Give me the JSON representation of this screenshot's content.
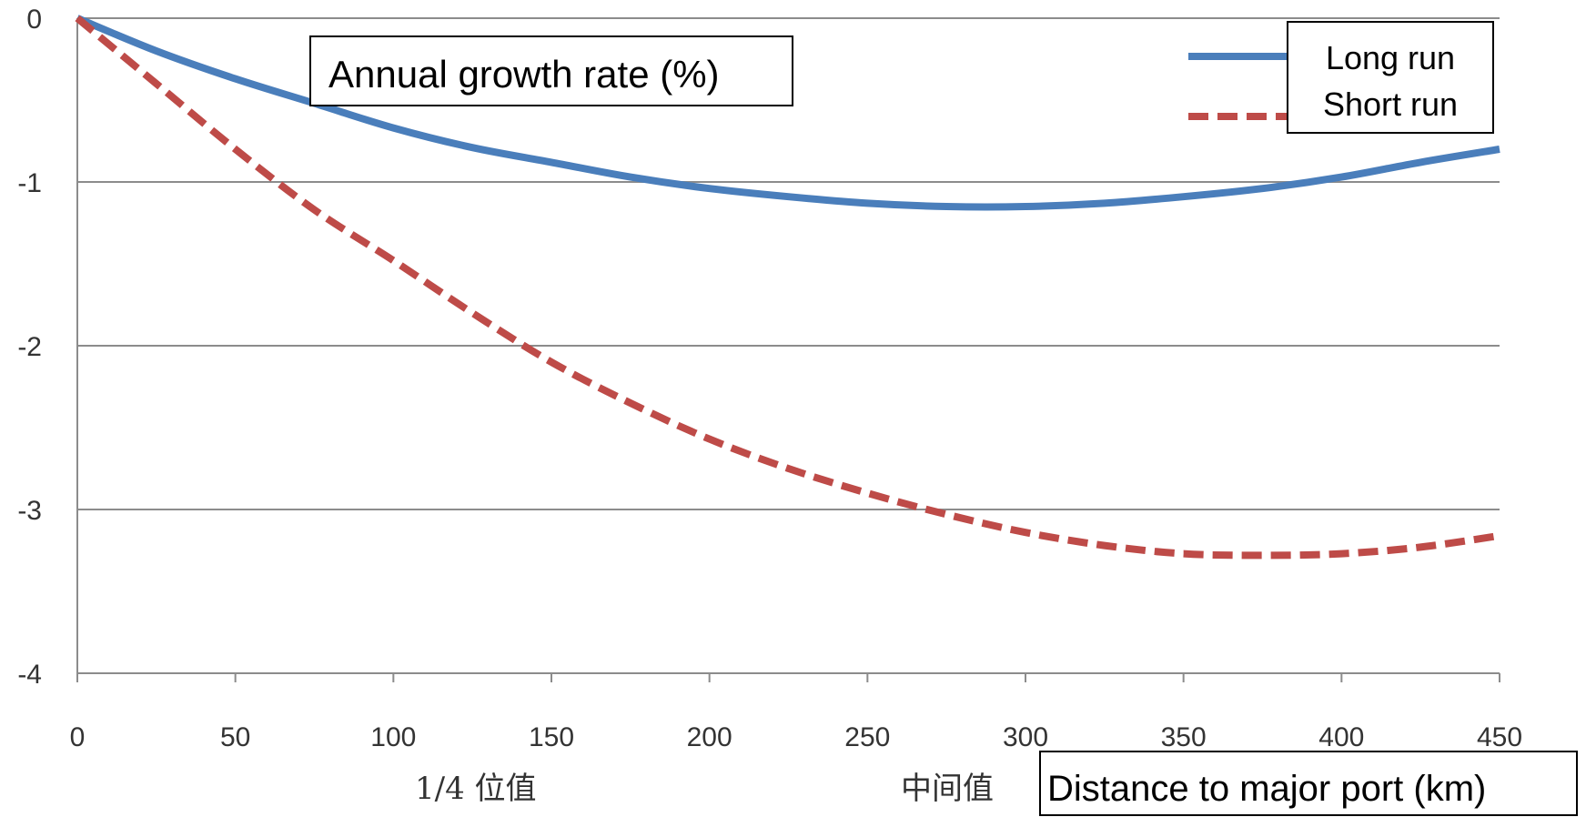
{
  "chart_data": {
    "type": "line",
    "title": "",
    "ylabel": "Annual growth rate (%)",
    "xlabel": "Distance to major port (km)",
    "xlim": [
      0,
      450
    ],
    "ylim": [
      -4,
      0
    ],
    "x_ticks": [
      "0",
      "50",
      "100",
      "150",
      "200",
      "250",
      "300",
      "350",
      "400",
      "450"
    ],
    "y_ticks": [
      "0",
      "-1",
      "-2",
      "-3",
      "-4"
    ],
    "grid": "horizontal",
    "legend_position": "top-right",
    "annotations": {
      "quartile": "1/4 位值",
      "median": "中间值"
    },
    "series": [
      {
        "name": "Long run",
        "style": "solid",
        "color": "#4a7ebb",
        "x": [
          0,
          25,
          50,
          75,
          100,
          125,
          150,
          175,
          200,
          225,
          250,
          275,
          300,
          325,
          350,
          375,
          400,
          425,
          450
        ],
        "values": [
          0,
          -0.2,
          -0.37,
          -0.52,
          -0.67,
          -0.79,
          -0.88,
          -0.97,
          -1.04,
          -1.09,
          -1.13,
          -1.15,
          -1.15,
          -1.13,
          -1.09,
          -1.04,
          -0.97,
          -0.88,
          -0.8
        ]
      },
      {
        "name": "Short run",
        "style": "dashed",
        "color": "#be4b48",
        "x": [
          0,
          25,
          50,
          75,
          100,
          125,
          150,
          175,
          200,
          225,
          250,
          275,
          300,
          325,
          350,
          375,
          400,
          425,
          450
        ],
        "values": [
          0,
          -0.4,
          -0.8,
          -1.17,
          -1.48,
          -1.8,
          -2.1,
          -2.35,
          -2.57,
          -2.75,
          -2.9,
          -3.03,
          -3.14,
          -3.22,
          -3.27,
          -3.28,
          -3.27,
          -3.23,
          -3.16
        ]
      }
    ]
  }
}
